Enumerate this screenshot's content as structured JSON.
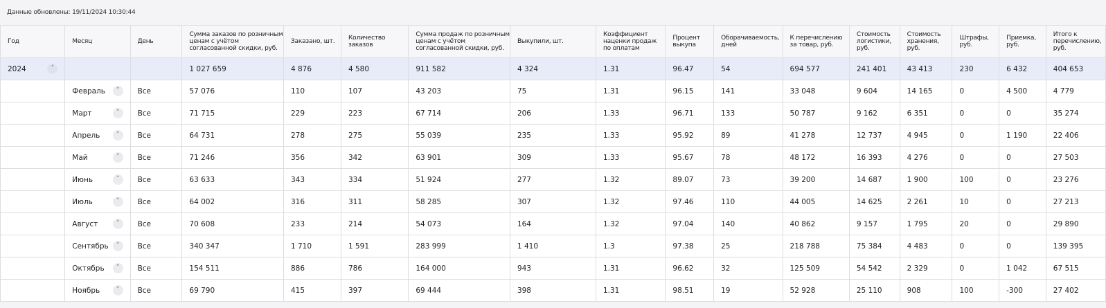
{
  "updated_label": "Данные обновлены: 19/11/2024 10:30:44",
  "columns": [
    "Год",
    "Месяц",
    "День",
    "Сумма заказов по розничным ценам с учётом согласованной скидки, руб.",
    "Заказано, шт.",
    "Количество заказов",
    "Сумма продаж по розничным ценам с учётом согласованной скидки, руб.",
    "Выкупили, шт.",
    "Коэффициент наценки продаж по оплатам",
    "Процент выкупа",
    "Оборачиваемость, дней",
    "К перечислению за товар, руб.",
    "Стоимость логистики, руб.",
    "Стоимость хранения, руб.",
    "Штрафы, руб.",
    "Приемка, руб.",
    "Итого к перечислению, руб."
  ],
  "total": {
    "year": "2024",
    "expand_icon": "chevron-up-icon",
    "values": [
      "1 027 659",
      "4 876",
      "4 580",
      "911 582",
      "4 324",
      "1.31",
      "96.47",
      "54",
      "694 577",
      "241 401",
      "43 413",
      "230",
      "6 432",
      "404 653"
    ]
  },
  "rows": [
    {
      "month": "Февраль",
      "day": "Все",
      "values": [
        "57 076",
        "110",
        "107",
        "43 203",
        "75",
        "1.31",
        "96.15",
        "141",
        "33 048",
        "9 604",
        "14 165",
        "0",
        "4 500",
        "4 779"
      ]
    },
    {
      "month": "Март",
      "day": "Все",
      "values": [
        "71 715",
        "229",
        "223",
        "67 714",
        "206",
        "1.33",
        "96.71",
        "133",
        "50 787",
        "9 162",
        "6 351",
        "0",
        "0",
        "35 274"
      ]
    },
    {
      "month": "Апрель",
      "day": "Все",
      "values": [
        "64 731",
        "278",
        "275",
        "55 039",
        "235",
        "1.33",
        "95.92",
        "89",
        "41 278",
        "12 737",
        "4 945",
        "0",
        "1 190",
        "22 406"
      ]
    },
    {
      "month": "Май",
      "day": "Все",
      "values": [
        "71 246",
        "356",
        "342",
        "63 901",
        "309",
        "1.33",
        "95.67",
        "78",
        "48 172",
        "16 393",
        "4 276",
        "0",
        "0",
        "27 503"
      ]
    },
    {
      "month": "Июнь",
      "day": "Все",
      "values": [
        "63 633",
        "343",
        "334",
        "51 924",
        "277",
        "1.32",
        "89.07",
        "73",
        "39 200",
        "14 687",
        "1 900",
        "100",
        "0",
        "23 276"
      ]
    },
    {
      "month": "Июль",
      "day": "Все",
      "values": [
        "64 002",
        "316",
        "311",
        "58 285",
        "307",
        "1.32",
        "97.46",
        "110",
        "44 005",
        "14 625",
        "2 261",
        "10",
        "0",
        "27 213"
      ]
    },
    {
      "month": "Август",
      "day": "Все",
      "values": [
        "70 608",
        "233",
        "214",
        "54 073",
        "164",
        "1.32",
        "97.04",
        "140",
        "40 862",
        "9 157",
        "1 795",
        "20",
        "0",
        "29 890"
      ]
    },
    {
      "month": "Сентябрь",
      "day": "Все",
      "values": [
        "340 347",
        "1 710",
        "1 591",
        "283 999",
        "1 410",
        "1.3",
        "97.38",
        "25",
        "218 788",
        "75 384",
        "4 483",
        "0",
        "0",
        "139 395"
      ]
    },
    {
      "month": "Октябрь",
      "day": "Все",
      "values": [
        "154 511",
        "886",
        "786",
        "164 000",
        "943",
        "1.31",
        "96.62",
        "32",
        "125 509",
        "54 542",
        "2 329",
        "0",
        "1 042",
        "67 515"
      ]
    },
    {
      "month": "Ноябрь",
      "day": "Все",
      "values": [
        "69 790",
        "415",
        "397",
        "69 444",
        "398",
        "1.31",
        "98.51",
        "19",
        "52 928",
        "25 110",
        "908",
        "100",
        "-300",
        "27 402"
      ]
    }
  ],
  "row_expand_icon": "chevron-down-icon",
  "colors": {
    "total_row_bg": "#e8ecf9",
    "border": "#dcdde3",
    "header_bg": "#f7f7f9"
  }
}
